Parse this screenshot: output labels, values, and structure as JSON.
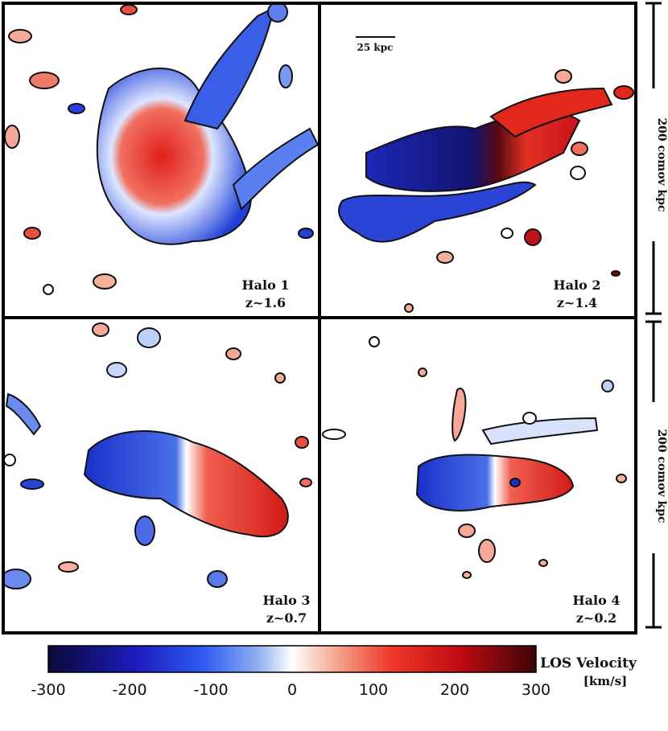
{
  "panels": [
    {
      "name": "Halo 1",
      "redshift": "z~1.6"
    },
    {
      "name": "Halo 2",
      "redshift": "z~1.4"
    },
    {
      "name": "Halo 3",
      "redshift": "z~0.7"
    },
    {
      "name": "Halo 4",
      "redshift": "z~0.2"
    }
  ],
  "scale_bar": {
    "label": "25 kpc"
  },
  "side_labels": {
    "top": "200 comov kpc",
    "bottom": "200 comov kpc"
  },
  "colorbar": {
    "title": "LOS Velocity",
    "unit": "[km/s]",
    "ticks": [
      "-300",
      "-200",
      "-100",
      "0",
      "100",
      "200",
      "300"
    ],
    "range": [
      -300,
      300
    ],
    "colors": [
      "#0b0a3a",
      "#1b1bbd",
      "#2e5cf0",
      "#8fb0f0",
      "#ffffff",
      "#f5b09a",
      "#ef3a2a",
      "#c20c12",
      "#3d0408"
    ]
  }
}
